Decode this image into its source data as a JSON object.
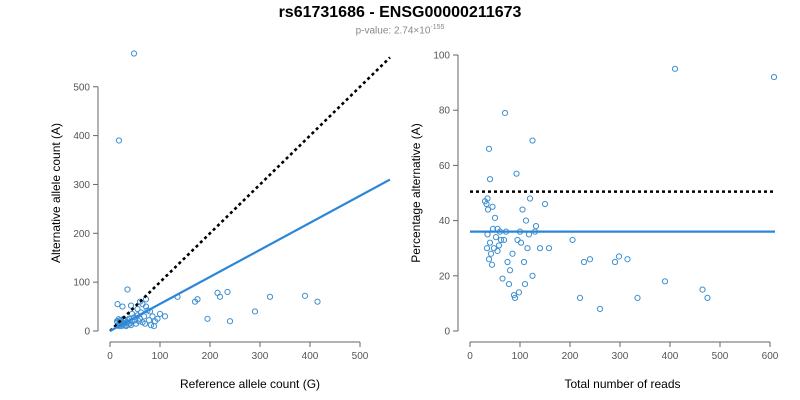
{
  "figure": {
    "title": "rs61731686 - ENSG00000211673",
    "pvalue_prefix": "p-value: 2.74×10",
    "pvalue_exponent": "-155"
  },
  "colors": {
    "points": "#3d8fd1",
    "fit_line": "#2b86d9",
    "reference_line": "#000000",
    "axis": "#666666"
  },
  "chart_data": [
    {
      "type": "scatter",
      "xlabel": "Reference allele count (G)",
      "ylabel": "Alternative allele count (A)",
      "xlim": [
        0,
        560
      ],
      "ylim": [
        0,
        565
      ],
      "xticks": [
        0,
        100,
        200,
        300,
        400,
        500
      ],
      "yticks": [
        0,
        100,
        200,
        300,
        400,
        500
      ],
      "points": [
        [
          48,
          568
        ],
        [
          18,
          390
        ],
        [
          35,
          85
        ],
        [
          15,
          55
        ],
        [
          25,
          50
        ],
        [
          42,
          52
        ],
        [
          55,
          45
        ],
        [
          65,
          55
        ],
        [
          72,
          50
        ],
        [
          60,
          60
        ],
        [
          80,
          40
        ],
        [
          85,
          30
        ],
        [
          90,
          20
        ],
        [
          100,
          35
        ],
        [
          110,
          30
        ],
        [
          135,
          70
        ],
        [
          170,
          60
        ],
        [
          175,
          65
        ],
        [
          195,
          25
        ],
        [
          215,
          78
        ],
        [
          220,
          70
        ],
        [
          235,
          80
        ],
        [
          240,
          20
        ],
        [
          290,
          40
        ],
        [
          320,
          70
        ],
        [
          390,
          72
        ],
        [
          415,
          60
        ],
        [
          15,
          18
        ],
        [
          18,
          10
        ],
        [
          20,
          14
        ],
        [
          22,
          20
        ],
        [
          25,
          12
        ],
        [
          28,
          15
        ],
        [
          30,
          22
        ],
        [
          32,
          10
        ],
        [
          35,
          18
        ],
        [
          38,
          25
        ],
        [
          40,
          15
        ],
        [
          42,
          12
        ],
        [
          45,
          20
        ],
        [
          48,
          28
        ],
        [
          50,
          22
        ],
        [
          52,
          15
        ],
        [
          55,
          32
        ],
        [
          58,
          20
        ],
        [
          60,
          25
        ],
        [
          62,
          38
        ],
        [
          65,
          18
        ],
        [
          68,
          30
        ],
        [
          70,
          15
        ],
        [
          75,
          42
        ],
        [
          78,
          22
        ],
        [
          82,
          12
        ],
        [
          88,
          10
        ],
        [
          95,
          25
        ],
        [
          20,
          22
        ],
        [
          24,
          18
        ],
        [
          27,
          25
        ],
        [
          33,
          12
        ],
        [
          44,
          35
        ],
        [
          72,
          65
        ],
        [
          16,
          12
        ],
        [
          19,
          16
        ],
        [
          26,
          14
        ],
        [
          30,
          16
        ],
        [
          37,
          14
        ],
        [
          14,
          20
        ],
        [
          17,
          24
        ],
        [
          23,
          10
        ],
        [
          29,
          20
        ],
        [
          36,
          22
        ]
      ],
      "fit_line": [
        [
          0,
          0
        ],
        [
          560,
          310
        ]
      ],
      "reference_line": [
        [
          0,
          0
        ],
        [
          560,
          560
        ]
      ]
    },
    {
      "type": "scatter",
      "xlabel": "Total number of reads",
      "ylabel": "Percentage alternative (A)",
      "xlim": [
        0,
        610
      ],
      "ylim": [
        0,
        100
      ],
      "xticks": [
        0,
        100,
        200,
        300,
        400,
        500,
        600
      ],
      "yticks": [
        0,
        20,
        40,
        60,
        80,
        100
      ],
      "points": [
        [
          410,
          95
        ],
        [
          608,
          92
        ],
        [
          70,
          79
        ],
        [
          125,
          69
        ],
        [
          38,
          66
        ],
        [
          93,
          57
        ],
        [
          40,
          55
        ],
        [
          35,
          48
        ],
        [
          30,
          47
        ],
        [
          33,
          46
        ],
        [
          45,
          45
        ],
        [
          50,
          41
        ],
        [
          55,
          37
        ],
        [
          60,
          36
        ],
        [
          62,
          33
        ],
        [
          72,
          36
        ],
        [
          75,
          25
        ],
        [
          85,
          28
        ],
        [
          90,
          12
        ],
        [
          95,
          33
        ],
        [
          100,
          36
        ],
        [
          105,
          44
        ],
        [
          108,
          25
        ],
        [
          112,
          40
        ],
        [
          115,
          30
        ],
        [
          120,
          48
        ],
        [
          125,
          20
        ],
        [
          130,
          36
        ],
        [
          132,
          38
        ],
        [
          140,
          30
        ],
        [
          150,
          46
        ],
        [
          158,
          30
        ],
        [
          205,
          33
        ],
        [
          220,
          12
        ],
        [
          228,
          25
        ],
        [
          240,
          26
        ],
        [
          260,
          8
        ],
        [
          290,
          25
        ],
        [
          298,
          27
        ],
        [
          315,
          26
        ],
        [
          335,
          12
        ],
        [
          390,
          18
        ],
        [
          465,
          15
        ],
        [
          475,
          12
        ],
        [
          35,
          35
        ],
        [
          40,
          32
        ],
        [
          42,
          28
        ],
        [
          48,
          30
        ],
        [
          52,
          34
        ],
        [
          58,
          31
        ],
        [
          65,
          19
        ],
        [
          78,
          17
        ],
        [
          88,
          13
        ],
        [
          98,
          14
        ],
        [
          110,
          17
        ],
        [
          38,
          26
        ],
        [
          44,
          24
        ],
        [
          55,
          29
        ],
        [
          68,
          33
        ],
        [
          80,
          22
        ],
        [
          102,
          32
        ],
        [
          118,
          35
        ],
        [
          36,
          44
        ],
        [
          46,
          37
        ],
        [
          34,
          30
        ]
      ],
      "mean_line": 36,
      "reference_line": 50.5
    }
  ]
}
